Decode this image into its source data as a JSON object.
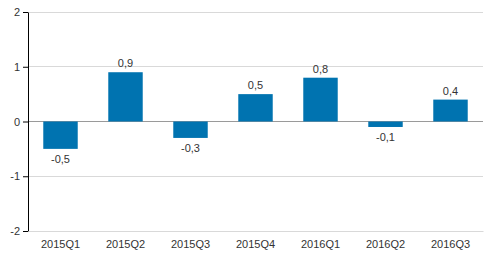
{
  "chart_data": {
    "type": "bar",
    "categories": [
      "2015Q1",
      "2015Q2",
      "2015Q3",
      "2015Q4",
      "2016Q1",
      "2016Q2",
      "2016Q3"
    ],
    "values": [
      -0.5,
      0.9,
      -0.3,
      0.5,
      0.8,
      -0.1,
      0.4
    ],
    "value_labels": [
      "-0,5",
      "0,9",
      "-0,3",
      "0,5",
      "0,8",
      "-0,1",
      "0,4"
    ],
    "color": "#0073b0",
    "ylim": [
      -2,
      2
    ],
    "yticks": [
      -2,
      -1,
      0,
      1,
      2
    ],
    "grid": true,
    "data_labels": true
  }
}
